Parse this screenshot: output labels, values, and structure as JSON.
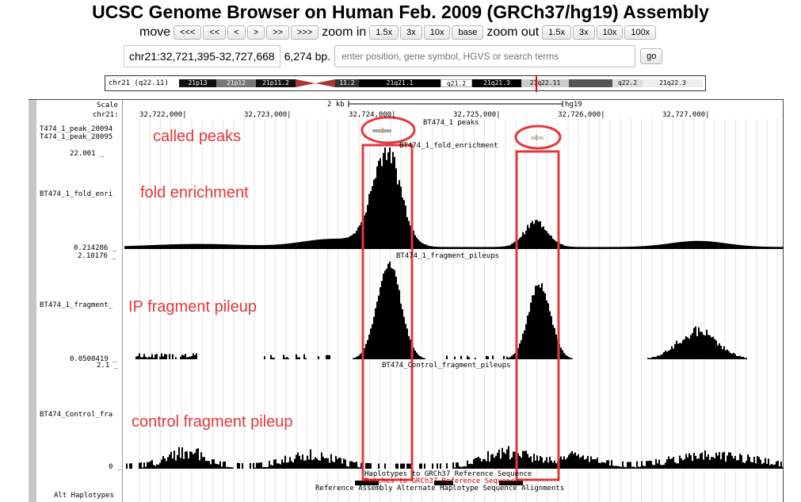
{
  "page_title": "UCSC Genome Browser on Human Feb. 2009 (GRCh37/hg19) Assembly",
  "nav": {
    "move_label": "move",
    "move_buttons": [
      "<<<",
      "<<",
      "<",
      ">",
      ">>",
      ">>>"
    ],
    "zoom_in_label": "zoom in",
    "zoom_in_buttons": [
      "1.5x",
      "3x",
      "10x",
      "base"
    ],
    "zoom_out_label": "zoom out",
    "zoom_out_buttons": [
      "1.5x",
      "3x",
      "10x",
      "100x"
    ]
  },
  "position": {
    "value": "chr21:32,721,395-32,727,668",
    "size": "6,274 bp.",
    "search_placeholder": "enter position, gene symbol, HGVS or search terms",
    "go_label": "go"
  },
  "ideogram": {
    "chrom_label": "chr21 (q22.11)",
    "bands": [
      "21p13",
      "21p12",
      "21p11.2",
      "11.2",
      "21q21.1",
      "q21.2",
      "21q21.3",
      "21q22.11",
      "q22.2",
      "21q22.3"
    ]
  },
  "ruler": {
    "scale_label": "Scale",
    "chrom_label": "chr21:",
    "scale_text": "2 kb",
    "assembly": "hg19",
    "ticks": [
      "32,722,000|",
      "32,723,000|",
      "32,724,000|",
      "32,725,000|",
      "32,726,000|",
      "32,727,000|"
    ]
  },
  "tracks": {
    "peaks": {
      "title": "BT474_1 peaks",
      "items": [
        "T474_1_peak_20094",
        "T474_1_peak_20095"
      ]
    },
    "fold_enrichment": {
      "title": "BT474_1_fold_enrichment",
      "label": "BT474_1_fold_enri",
      "max": "22.001 _",
      "min": "0.214286 _"
    },
    "ip_pileup": {
      "title": "BT474_1_fragment_pileups",
      "label": "BT474_1_fragment_",
      "max": "2.10176 _",
      "min": "0.0500419 _"
    },
    "control_pileup": {
      "title": "BT474_Control_fragment_pileups",
      "label": "BT474_Control_fra",
      "max": "2.1 _",
      "min": "0 _"
    },
    "haplotypes": {
      "label": "Alt Haplotypes",
      "line1": "Haplotypes to GRCh37 Reference Sequence",
      "line2": "Patches to GRCh37 Reference Sequence",
      "line3": "Reference Assembly Alternate Haplotype Sequence Alignments"
    }
  },
  "annotations": {
    "called_peaks": "called peaks",
    "fold_enrichment": "fold enrichment",
    "ip_fragment_pileup": "IP fragment pileup",
    "control_fragment_pileup": "control fragment pileup"
  },
  "colors": {
    "annotation_red": "#e2383c",
    "signal": "#000000",
    "patch_red": "#cc0000"
  }
}
